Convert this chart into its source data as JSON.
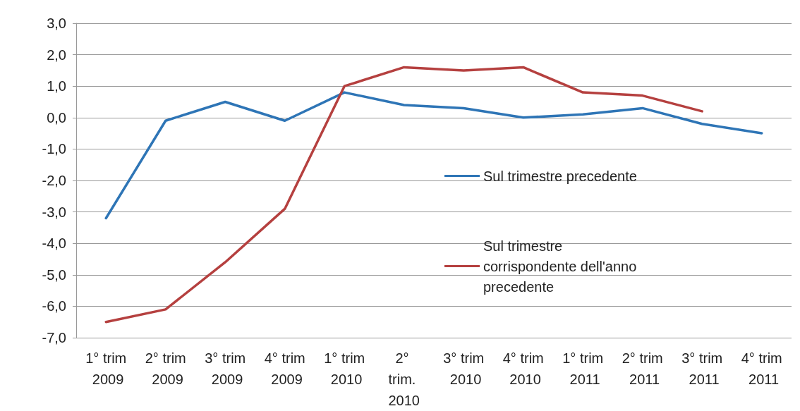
{
  "chart_data": {
    "type": "line",
    "categories": [
      "1° trim 2009",
      "2° trim 2009",
      "3° trim 2009",
      "4° trim 2009",
      "1° trim 2010",
      "2° trim. 2010",
      "3° trim 2010",
      "4° trim 2010",
      "1° trim 2011",
      "2° trim 2011",
      "3° trim 2011",
      "4° trim 2011"
    ],
    "series": [
      {
        "name": "Sul trimestre precedente",
        "color": "#2e75b6",
        "values": [
          -3.2,
          -0.1,
          0.5,
          -0.1,
          0.8,
          0.4,
          0.3,
          0.0,
          0.1,
          0.3,
          -0.2,
          -0.5
        ]
      },
      {
        "name": "Sul trimestre corrispondente dell'anno precedente",
        "color": "#b5403f",
        "values": [
          -6.5,
          -6.1,
          -4.6,
          -2.9,
          1.0,
          1.6,
          1.5,
          1.6,
          0.8,
          0.7,
          0.2,
          null
        ]
      }
    ],
    "ylim": [
      -7,
      3
    ],
    "yticks": [
      {
        "value": -7,
        "label": "-7,0"
      },
      {
        "value": -6,
        "label": "-6,0"
      },
      {
        "value": -5,
        "label": "-5,0"
      },
      {
        "value": -4,
        "label": "-4,0"
      },
      {
        "value": -3,
        "label": "-3,0"
      },
      {
        "value": -2,
        "label": "-2,0"
      },
      {
        "value": -1,
        "label": "-1,0"
      },
      {
        "value": 0,
        "label": "0,0"
      },
      {
        "value": 1,
        "label": "1,0"
      },
      {
        "value": 2,
        "label": "2,0"
      },
      {
        "value": 3,
        "label": "3,0"
      }
    ],
    "grid": "y",
    "legend": "right",
    "marker": "none",
    "line_style": "solid"
  }
}
